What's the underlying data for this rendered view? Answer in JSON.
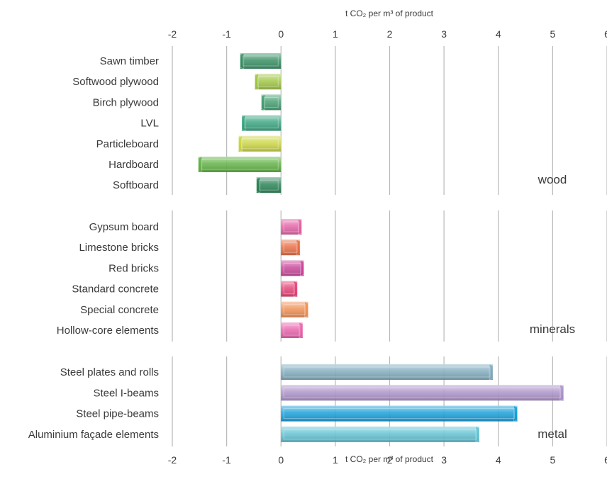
{
  "chart_data": {
    "type": "bar",
    "orientation": "horizontal",
    "xlabel_top": "t CO₂ per m³ of product",
    "xlabel_bottom": "t CO₂ per m³ of product",
    "xlim": [
      -2,
      6
    ],
    "xticks": [
      "-2",
      "-1",
      "0",
      "1",
      "2",
      "3",
      "4",
      "5",
      "6"
    ],
    "grid": true,
    "groups": [
      {
        "name": "wood",
        "bars": [
          {
            "label": "Sawn timber",
            "value": -0.75,
            "color": "#2e8a5c"
          },
          {
            "label": "Softwood plywood",
            "value": -0.48,
            "color": "#9cc43a"
          },
          {
            "label": "Birch plywood",
            "value": -0.36,
            "color": "#3c9a6a"
          },
          {
            "label": "LVL",
            "value": -0.72,
            "color": "#2fa07a"
          },
          {
            "label": "Particleboard",
            "value": -0.78,
            "color": "#c9d438"
          },
          {
            "label": "Hardboard",
            "value": -1.52,
            "color": "#58ad3a"
          },
          {
            "label": "Softboard",
            "value": -0.45,
            "color": "#1e7d4e"
          }
        ]
      },
      {
        "name": "minerals",
        "bars": [
          {
            "label": "Gypsum board",
            "value": 0.38,
            "color": "#e25aa2"
          },
          {
            "label": "Limestone bricks",
            "value": 0.35,
            "color": "#e8663a"
          },
          {
            "label": "Red bricks",
            "value": 0.42,
            "color": "#c83c96"
          },
          {
            "label": "Standard concrete",
            "value": 0.3,
            "color": "#e23a70"
          },
          {
            "label": "Special concrete",
            "value": 0.5,
            "color": "#f08a4a"
          },
          {
            "label": "Hollow-core elements",
            "value": 0.4,
            "color": "#e85aa8"
          }
        ]
      },
      {
        "name": "metal",
        "bars": [
          {
            "label": "Steel plates and rolls",
            "value": 3.9,
            "color": "#7aa6ba"
          },
          {
            "label": "Steel I-beams",
            "value": 5.2,
            "color": "#a88ec8"
          },
          {
            "label": "Steel pipe-beams",
            "value": 4.35,
            "color": "#0b9ad8"
          },
          {
            "label": "Aluminium façade elements",
            "value": 3.65,
            "color": "#5abfd0"
          }
        ]
      }
    ]
  }
}
